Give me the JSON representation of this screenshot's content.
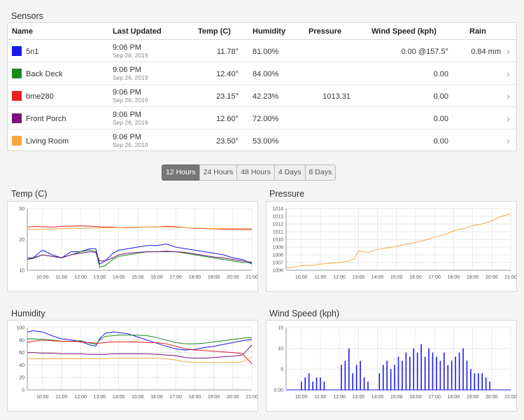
{
  "sensors": {
    "title": "Sensors",
    "columns": [
      "Name",
      "Last Updated",
      "Temp (C)",
      "Humidity",
      "Pressure",
      "Wind Speed (kph)",
      "Rain"
    ],
    "rows": [
      {
        "color": "#1a1aee",
        "name": "5n1",
        "time": "9:06 PM",
        "date": "Sep 26, 2019",
        "temp": "11.78°",
        "humidity": "81.00%",
        "pressure": "",
        "wind": "0.00 @157.5°",
        "rain": "0.84 mm"
      },
      {
        "color": "#198a1a",
        "name": "Back Deck",
        "time": "9:06 PM",
        "date": "Sep 26, 2019",
        "temp": "12.40°",
        "humidity": "84.00%",
        "pressure": "",
        "wind": "0.00",
        "rain": ""
      },
      {
        "color": "#ee1c25",
        "name": "bme280",
        "time": "9:06 PM",
        "date": "Sep 26, 2019",
        "temp": "23.15°",
        "humidity": "42.23%",
        "pressure": "1013.31",
        "wind": "0.00",
        "rain": ""
      },
      {
        "color": "#7b117e",
        "name": "Front Porch",
        "time": "9:06 PM",
        "date": "Sep 26, 2019",
        "temp": "12.60°",
        "humidity": "72.00%",
        "pressure": "",
        "wind": "0.00",
        "rain": ""
      },
      {
        "color": "#f8a93c",
        "name": "Living Room",
        "time": "9:06 PM",
        "date": "Sep 26, 2019",
        "temp": "23.50°",
        "humidity": "53.00%",
        "pressure": "",
        "wind": "0.00",
        "rain": ""
      }
    ]
  },
  "range_buttons": [
    "12 Hours",
    "24 Hours",
    "48 Hours",
    "4 Days",
    "8 Days"
  ],
  "active_range": "12 Hours",
  "chevron": "›",
  "chart_data": [
    {
      "type": "line",
      "title": "Temp (C)",
      "x_ticks": [
        "10:00",
        "11:00",
        "12:00",
        "13:00",
        "14:00",
        "15:00",
        "16:00",
        "17:00",
        "18:00",
        "19:00",
        "20:00",
        "21:00"
      ],
      "x": [
        9.2,
        9.5,
        10,
        10.5,
        11,
        11.5,
        12,
        12.5,
        12.8,
        13,
        13.3,
        13.7,
        14,
        14.5,
        15,
        15.5,
        16,
        16.5,
        17,
        17.5,
        18,
        18.5,
        19,
        19.5,
        20,
        20.5,
        21
      ],
      "ylim": [
        10,
        30
      ],
      "y_ticks": [
        10,
        20,
        30
      ],
      "series": [
        {
          "color": "#1a1aee",
          "values": [
            14,
            14,
            16.5,
            15,
            14,
            16,
            16,
            17,
            17,
            12,
            13,
            15.5,
            16.5,
            17,
            17.5,
            18,
            18,
            18.5,
            17.5,
            17,
            16.5,
            16,
            15.5,
            15,
            14,
            13.5,
            12
          ]
        },
        {
          "color": "#198a1a",
          "values": [
            13.5,
            14,
            15,
            14.5,
            14,
            15,
            16,
            16.5,
            16,
            11,
            11.5,
            13.5,
            14.5,
            15,
            15.5,
            16,
            16,
            16,
            16,
            15.5,
            15,
            14.5,
            14,
            13.5,
            13,
            12.5,
            12.4
          ]
        },
        {
          "color": "#ee1c25",
          "values": [
            24,
            24.2,
            24.1,
            24,
            24.2,
            24.3,
            24.4,
            24.3,
            24.2,
            24.1,
            24,
            24,
            23.8,
            23.8,
            23.9,
            24,
            24,
            24.3,
            24.1,
            23.8,
            23.6,
            23.5,
            23.4,
            23.3,
            23.2,
            23.2,
            23.15
          ]
        },
        {
          "color": "#7b117e",
          "values": [
            13.5,
            13.8,
            15,
            14.5,
            14,
            15,
            15.5,
            16,
            15.8,
            13,
            13,
            14,
            15,
            15.5,
            15.8,
            16,
            16,
            16.2,
            16,
            15.8,
            15.3,
            14.8,
            14.3,
            14,
            13.5,
            13,
            12.6
          ]
        },
        {
          "color": "#f8a93c",
          "values": [
            23.2,
            23.3,
            23.3,
            23.4,
            23.5,
            23.6,
            23.6,
            23.7,
            23.7,
            23.7,
            23.8,
            23.8,
            23.8,
            23.9,
            24,
            24,
            24,
            24.1,
            23.9,
            23.8,
            23.7,
            23.6,
            23.5,
            23.5,
            23.5,
            23.5,
            23.5
          ]
        }
      ]
    },
    {
      "type": "line",
      "title": "Pressure",
      "x_ticks": [
        "10:00",
        "11:00",
        "12:00",
        "13:00",
        "14:00",
        "15:00",
        "16:00",
        "17:00",
        "18:00",
        "19:00",
        "20:00",
        "21:00"
      ],
      "x": [
        9.2,
        9.6,
        10,
        10.5,
        11,
        11.5,
        12,
        12.5,
        12.8,
        13,
        13.5,
        14,
        14.5,
        15,
        15.5,
        16,
        16.5,
        17,
        17.5,
        18,
        18.5,
        19,
        19.5,
        20,
        20.5,
        21
      ],
      "ylim": [
        1006,
        1014
      ],
      "y_ticks": [
        1006,
        1007,
        1008,
        1009,
        1010,
        1011,
        1012,
        1013,
        1014
      ],
      "series": [
        {
          "color": "#f8a93c",
          "values": [
            1006.3,
            1006.4,
            1006.6,
            1006.6,
            1006.8,
            1006.9,
            1007,
            1007.2,
            1007.5,
            1008.5,
            1008.3,
            1008.7,
            1008.9,
            1009.1,
            1009.4,
            1009.6,
            1009.9,
            1010.3,
            1010.6,
            1011.1,
            1011.4,
            1011.8,
            1012,
            1012.4,
            1013,
            1013.3
          ]
        }
      ]
    },
    {
      "type": "line",
      "title": "Humidity",
      "x_ticks": [
        "10:00",
        "11:00",
        "12:00",
        "13:00",
        "14:00",
        "15:00",
        "16:00",
        "17:00",
        "18:00",
        "19:00",
        "20:00",
        "21:00"
      ],
      "x": [
        9.2,
        9.5,
        10,
        10.5,
        11,
        11.5,
        12,
        12.5,
        12.8,
        13,
        13.3,
        13.7,
        14,
        14.5,
        15,
        15.5,
        16,
        16.5,
        17,
        17.5,
        18,
        18.5,
        19,
        19.5,
        20,
        20.5,
        21
      ],
      "ylim": [
        0,
        100
      ],
      "y_ticks": [
        0,
        20,
        40,
        60,
        80,
        100
      ],
      "series": [
        {
          "color": "#1a1aee",
          "values": [
            93,
            95,
            93,
            87,
            82,
            80,
            78,
            72,
            70,
            82,
            91,
            93,
            92,
            90,
            85,
            80,
            75,
            70,
            66,
            64,
            65,
            68,
            70,
            73,
            76,
            79,
            81
          ]
        },
        {
          "color": "#198a1a",
          "values": [
            82,
            82,
            81,
            80,
            78,
            78,
            79,
            75,
            73,
            80,
            86,
            87,
            88,
            88,
            88,
            87,
            84,
            80,
            76,
            74,
            74,
            75,
            77,
            79,
            81,
            83,
            84
          ]
        },
        {
          "color": "#ee1c25",
          "values": [
            76,
            78,
            80,
            79,
            78,
            78,
            77,
            76,
            75,
            75,
            76,
            77,
            77,
            77,
            77,
            76,
            76,
            74,
            70,
            66,
            64,
            63,
            62,
            61,
            60,
            58,
            42
          ]
        },
        {
          "color": "#7b117e",
          "values": [
            60,
            60,
            59,
            59,
            58,
            58,
            58,
            57,
            57,
            57,
            57,
            58,
            58,
            58,
            58,
            58,
            57,
            56,
            55,
            52,
            51,
            51,
            52,
            53,
            54,
            56,
            72
          ]
        },
        {
          "color": "#f8a93c",
          "values": [
            50,
            50,
            50,
            50,
            50,
            50,
            50,
            50,
            50,
            50,
            50,
            51,
            51,
            51,
            51,
            51,
            51,
            50,
            48,
            45,
            44,
            44,
            44,
            44,
            44,
            45,
            53
          ]
        }
      ]
    },
    {
      "type": "bar",
      "title": "Wind Speed (kph)",
      "x_ticks": [
        "10:00",
        "11:00",
        "12:00",
        "13:00",
        "14:00",
        "15:00",
        "16:00",
        "17:00",
        "18:00",
        "19:00",
        "20:00",
        "21:00"
      ],
      "x_range": [
        9.2,
        21
      ],
      "ylim": [
        0,
        15
      ],
      "y_ticks": [
        "0.00",
        "5",
        "10",
        "15"
      ],
      "series": [
        {
          "color": "#1a1aee",
          "x": [
            10,
            10.2,
            10.4,
            10.6,
            10.8,
            11,
            11.2,
            12.1,
            12.3,
            12.5,
            12.7,
            12.9,
            13.1,
            13.3,
            13.5,
            14.1,
            14.3,
            14.5,
            14.7,
            14.9,
            15.1,
            15.3,
            15.5,
            15.7,
            15.9,
            16.1,
            16.3,
            16.5,
            16.7,
            16.9,
            17.1,
            17.3,
            17.5,
            17.7,
            17.9,
            18.1,
            18.3,
            18.5,
            18.7,
            18.9,
            19.1,
            19.3,
            19.5,
            19.7,
            19.9
          ],
          "values": [
            2,
            3,
            4,
            2,
            3,
            3,
            2,
            6,
            7,
            10,
            4,
            6,
            7,
            3,
            2,
            4,
            6,
            7,
            5,
            6,
            8,
            7,
            9,
            8,
            10,
            9,
            11,
            8,
            10,
            9,
            8,
            7,
            9,
            6,
            7,
            8,
            9,
            10,
            7,
            5,
            4,
            4,
            4,
            3,
            2
          ]
        }
      ]
    }
  ]
}
